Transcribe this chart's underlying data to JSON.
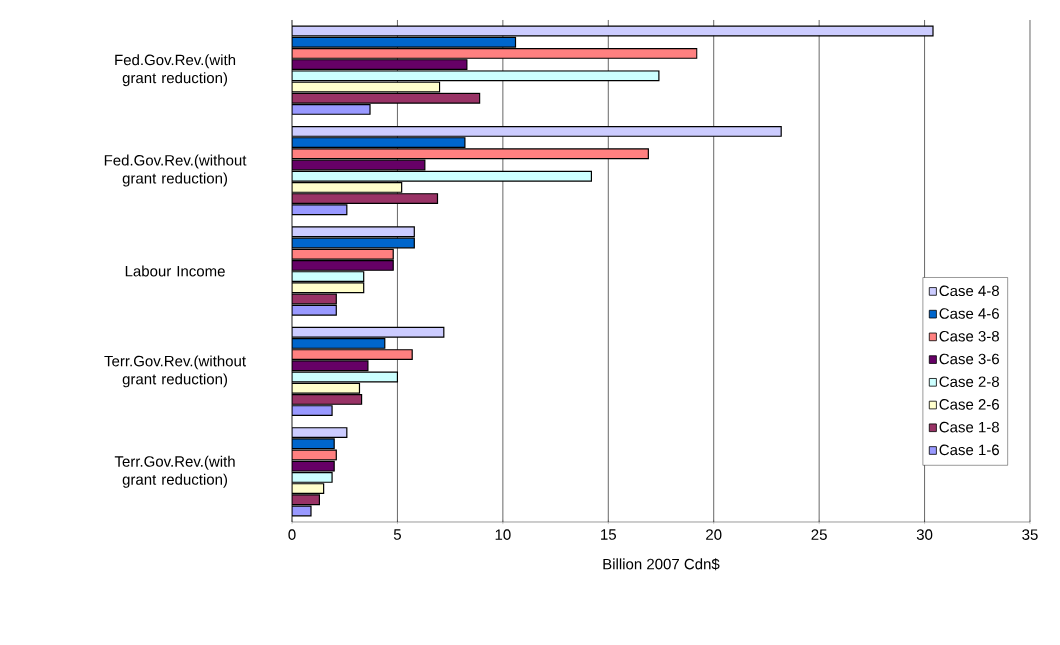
{
  "chart_data": {
    "type": "bar",
    "orientation": "horizontal",
    "xlabel": "Billion 2007 Cdn$",
    "categories": [
      "Fed.Gov.Rev.(with grant reduction)",
      "Fed.Gov.Rev.(without grant reduction)",
      "Labour Income",
      "Terr.Gov.Rev.(without grant reduction)",
      "Terr.Gov.Rev.(with grant reduction)"
    ],
    "series": [
      {
        "name": "Case 4-8",
        "color": "#ccccff",
        "values": [
          30.4,
          23.2,
          5.8,
          7.2,
          2.6
        ]
      },
      {
        "name": "Case 4-6",
        "color": "#0066cc",
        "values": [
          10.6,
          8.2,
          5.8,
          4.4,
          2.0
        ]
      },
      {
        "name": "Case 3-8",
        "color": "#ff8080",
        "values": [
          19.2,
          16.9,
          4.8,
          5.7,
          2.1
        ]
      },
      {
        "name": "Case 3-6",
        "color": "#660066",
        "values": [
          8.3,
          6.3,
          4.8,
          3.6,
          2.0
        ]
      },
      {
        "name": "Case 2-8",
        "color": "#ccffff",
        "values": [
          17.4,
          14.2,
          3.4,
          5.0,
          1.9
        ]
      },
      {
        "name": "Case 2-6",
        "color": "#ffffcc",
        "values": [
          7.0,
          5.2,
          3.4,
          3.2,
          1.5
        ]
      },
      {
        "name": "Case 1-8",
        "color": "#993366",
        "values": [
          8.9,
          6.9,
          2.1,
          3.3,
          1.3
        ]
      },
      {
        "name": "Case 1-6",
        "color": "#9999ff",
        "values": [
          3.7,
          2.6,
          2.1,
          1.9,
          0.9
        ]
      }
    ],
    "xlim": [
      0,
      35
    ],
    "xticks": [
      0,
      5,
      10,
      15,
      20,
      25,
      30,
      35
    ],
    "grid": "x",
    "legend": "right"
  }
}
